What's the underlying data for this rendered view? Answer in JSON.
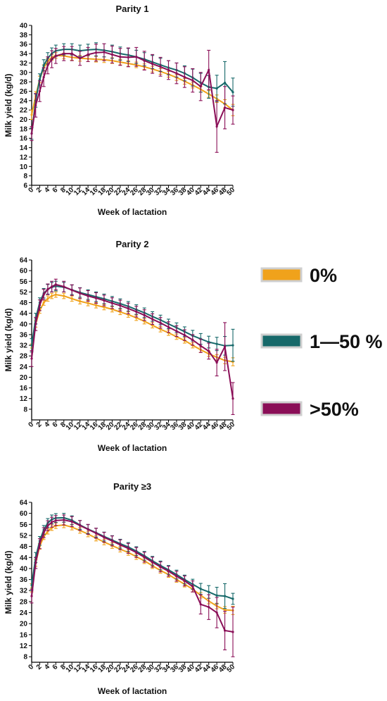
{
  "colors": {
    "zero": "#F0A21B",
    "low": "#17696A",
    "high": "#8A0E57"
  },
  "legend": [
    {
      "label": "0%",
      "color_key": "zero"
    },
    {
      "label": "1—50 %",
      "color_key": "low"
    },
    {
      "label": ">50%",
      "color_key": "high"
    }
  ],
  "chart_data": [
    {
      "type": "line",
      "title": "Parity 1",
      "xlabel": "Week of lactation",
      "ylabel": "Milk yield (kg/d)",
      "xlim": [
        0,
        50
      ],
      "ylim": [
        6,
        40
      ],
      "yticks": [
        6,
        8,
        10,
        12,
        14,
        16,
        18,
        20,
        22,
        24,
        26,
        28,
        30,
        32,
        34,
        36,
        38,
        40
      ],
      "xticks": [
        0,
        2,
        4,
        6,
        8,
        10,
        12,
        14,
        16,
        18,
        20,
        22,
        24,
        26,
        28,
        30,
        32,
        34,
        36,
        38,
        40,
        42,
        44,
        46,
        48,
        50
      ],
      "error_bars": "±",
      "series": [
        {
          "name": "0%",
          "color_key": "zero",
          "x": [
            0,
            1,
            2,
            3,
            4,
            5,
            6,
            8,
            10,
            12,
            14,
            16,
            18,
            20,
            22,
            24,
            26,
            28,
            30,
            32,
            34,
            36,
            38,
            40,
            42,
            44,
            46,
            48,
            50
          ],
          "y": [
            21,
            25,
            28.5,
            31,
            32.3,
            33.2,
            33.6,
            33.5,
            33.2,
            33.0,
            32.9,
            32.8,
            32.7,
            32.5,
            32.2,
            31.9,
            31.6,
            31.2,
            30.7,
            30.2,
            29.6,
            28.9,
            28.1,
            27.3,
            26.4,
            25.4,
            24.4,
            23.3,
            22.0
          ],
          "err": [
            1.0,
            0.9,
            0.7,
            0.6,
            0.6,
            0.6,
            0.6,
            0.6,
            0.6,
            0.6,
            0.6,
            0.6,
            0.6,
            0.6,
            0.6,
            0.6,
            0.6,
            0.6,
            0.6,
            0.6,
            0.6,
            0.6,
            0.6,
            0.6,
            0.6,
            0.7,
            0.8,
            0.9,
            1.2
          ]
        },
        {
          "name": "1—50 %",
          "color_key": "low",
          "x": [
            0,
            1,
            2,
            3,
            4,
            5,
            6,
            8,
            10,
            12,
            14,
            16,
            18,
            20,
            22,
            24,
            26,
            28,
            30,
            32,
            34,
            36,
            38,
            40,
            42,
            44,
            46,
            48,
            50
          ],
          "y": [
            17,
            24,
            28.5,
            31.5,
            33.0,
            34.0,
            34.6,
            34.9,
            34.9,
            34.6,
            34.8,
            34.9,
            34.7,
            34.4,
            34.0,
            33.7,
            33.3,
            32.8,
            32.2,
            31.6,
            31.0,
            30.5,
            29.8,
            28.9,
            27.8,
            26.9,
            26.6,
            27.8,
            25.8
          ],
          "err": [
            1.2,
            1.4,
            1.2,
            1.2,
            1.2,
            1.2,
            1.2,
            1.2,
            1.2,
            1.2,
            1.2,
            1.4,
            1.4,
            1.4,
            1.4,
            1.4,
            1.4,
            1.4,
            1.4,
            1.4,
            1.5,
            1.5,
            1.6,
            1.8,
            2.0,
            2.4,
            2.8,
            4.5,
            3.0
          ]
        },
        {
          "name": ">50%",
          "color_key": "high",
          "x": [
            0,
            1,
            2,
            3,
            4,
            5,
            6,
            8,
            10,
            12,
            14,
            16,
            18,
            20,
            22,
            24,
            26,
            28,
            30,
            32,
            34,
            36,
            38,
            40,
            42,
            44,
            46,
            48,
            50
          ],
          "y": [
            17,
            23,
            26.0,
            29.0,
            31.5,
            32.8,
            33.5,
            34.0,
            34.0,
            33.0,
            33.8,
            34.2,
            34.3,
            33.8,
            33.3,
            33.2,
            33.3,
            32.5,
            31.8,
            31.2,
            30.5,
            29.8,
            29.0,
            28.3,
            27.0,
            30.5,
            18.5,
            22.5,
            22.0
          ],
          "err": [
            1.5,
            2.5,
            2.2,
            2.0,
            1.8,
            1.8,
            1.6,
            1.5,
            1.5,
            1.5,
            1.5,
            1.8,
            1.8,
            1.8,
            1.8,
            2.0,
            2.0,
            2.0,
            2.0,
            2.0,
            2.0,
            2.2,
            2.2,
            2.5,
            3.0,
            4.2,
            5.5,
            4.5,
            3.0
          ]
        }
      ]
    },
    {
      "type": "line",
      "title": "Parity 2",
      "xlabel": "Week of lactation",
      "ylabel": "Milk yield (kg/d)",
      "xlim": [
        0,
        50
      ],
      "ylim": [
        4,
        64
      ],
      "yticks": [
        8,
        12,
        16,
        20,
        24,
        28,
        32,
        36,
        40,
        44,
        48,
        52,
        56,
        60,
        64
      ],
      "xticks": [
        0,
        2,
        4,
        6,
        8,
        10,
        12,
        14,
        16,
        18,
        20,
        22,
        24,
        26,
        28,
        30,
        32,
        34,
        36,
        38,
        40,
        42,
        44,
        46,
        48,
        50
      ],
      "error_bars": "±",
      "series": [
        {
          "name": "0%",
          "color_key": "zero",
          "x": [
            0,
            1,
            2,
            3,
            4,
            5,
            6,
            8,
            10,
            12,
            14,
            16,
            18,
            20,
            22,
            24,
            26,
            28,
            30,
            32,
            34,
            36,
            38,
            40,
            42,
            44,
            46,
            48,
            50
          ],
          "y": [
            31,
            40,
            45,
            48,
            49.5,
            50.5,
            51.0,
            50.5,
            49.5,
            48.5,
            47.8,
            47.0,
            46.3,
            45.5,
            44.5,
            43.5,
            42.3,
            41.0,
            39.5,
            38.0,
            36.7,
            35.2,
            33.8,
            32.0,
            30.3,
            28.8,
            27.5,
            26.3,
            25.8
          ],
          "err": [
            1.5,
            1.2,
            1.0,
            1.0,
            1.0,
            1.0,
            1.0,
            1.0,
            1.0,
            1.0,
            1.0,
            1.0,
            1.0,
            1.0,
            1.0,
            1.0,
            1.0,
            1.0,
            1.0,
            1.0,
            1.0,
            1.0,
            1.0,
            1.0,
            1.0,
            1.0,
            1.0,
            1.2,
            1.5
          ]
        },
        {
          "name": "1—50 %",
          "color_key": "low",
          "x": [
            0,
            1,
            2,
            3,
            4,
            5,
            6,
            8,
            10,
            12,
            14,
            16,
            18,
            20,
            22,
            24,
            26,
            28,
            30,
            32,
            34,
            36,
            38,
            40,
            42,
            44,
            46,
            48,
            50
          ],
          "y": [
            32,
            42,
            48,
            51.5,
            53,
            53.8,
            54.2,
            53.8,
            52.8,
            51.8,
            51.0,
            50.2,
            49.4,
            48.5,
            47.6,
            46.6,
            45.4,
            44.2,
            42.8,
            41.5,
            40.0,
            38.6,
            37.1,
            35.6,
            34.4,
            33.2,
            32.5,
            31.8,
            32.0
          ],
          "err": [
            2.5,
            2.0,
            1.8,
            1.8,
            1.8,
            1.8,
            1.8,
            1.8,
            1.8,
            1.8,
            1.8,
            1.8,
            1.8,
            1.8,
            1.8,
            1.8,
            1.8,
            1.8,
            1.8,
            1.8,
            1.8,
            1.8,
            1.8,
            2.0,
            2.0,
            2.2,
            2.5,
            3.5,
            6.0
          ]
        },
        {
          "name": ">50%",
          "color_key": "high",
          "x": [
            0,
            1,
            2,
            3,
            4,
            5,
            6,
            8,
            10,
            12,
            14,
            16,
            18,
            20,
            22,
            24,
            26,
            28,
            30,
            32,
            34,
            36,
            38,
            40,
            42,
            44,
            46,
            48,
            50
          ],
          "y": [
            27,
            40,
            47,
            51,
            53,
            54,
            54.8,
            54.0,
            52.7,
            51.5,
            50.5,
            49.7,
            48.8,
            47.8,
            46.9,
            45.8,
            44.6,
            43.3,
            41.8,
            40.4,
            38.8,
            37.3,
            35.8,
            34.0,
            31.8,
            29.8,
            25.5,
            31.5,
            12.0
          ],
          "err": [
            3.0,
            2.5,
            2.0,
            2.0,
            2.0,
            2.0,
            2.0,
            2.0,
            2.0,
            2.0,
            2.0,
            2.0,
            2.0,
            2.0,
            2.0,
            2.0,
            2.0,
            2.0,
            2.0,
            2.0,
            2.0,
            2.0,
            2.0,
            2.0,
            2.5,
            3.0,
            5.0,
            9.0,
            6.0
          ]
        }
      ]
    },
    {
      "type": "line",
      "title": "Parity ≥3",
      "xlabel": "Week of lactation",
      "ylabel": "Milk yield (kg/d)",
      "xlim": [
        0,
        50
      ],
      "ylim": [
        6,
        64
      ],
      "yticks": [
        8,
        12,
        16,
        20,
        24,
        28,
        32,
        36,
        40,
        44,
        48,
        52,
        56,
        60,
        64
      ],
      "xticks": [
        0,
        2,
        4,
        6,
        8,
        10,
        12,
        14,
        16,
        18,
        20,
        22,
        24,
        26,
        28,
        30,
        32,
        34,
        36,
        38,
        40,
        42,
        44,
        46,
        48,
        50
      ],
      "error_bars": "±",
      "series": [
        {
          "name": "0%",
          "color_key": "zero",
          "x": [
            0,
            1,
            2,
            3,
            4,
            5,
            6,
            8,
            10,
            12,
            14,
            16,
            18,
            20,
            22,
            24,
            26,
            28,
            30,
            32,
            34,
            36,
            38,
            40,
            42,
            44,
            46,
            48,
            50
          ],
          "y": [
            33,
            42,
            48,
            51.5,
            53.5,
            54.8,
            55.5,
            55.8,
            55.0,
            53.8,
            52.5,
            51.0,
            49.6,
            48.3,
            47.0,
            45.8,
            44.3,
            42.8,
            41.0,
            39.3,
            37.8,
            36.0,
            34.3,
            32.5,
            30.3,
            28.2,
            26.4,
            25.0,
            24.8
          ],
          "err": [
            1.5,
            1.2,
            1.0,
            1.0,
            1.0,
            1.0,
            1.0,
            1.0,
            1.0,
            1.0,
            1.0,
            1.0,
            1.0,
            1.0,
            1.0,
            1.0,
            1.0,
            1.0,
            1.0,
            1.0,
            1.0,
            1.0,
            1.0,
            1.0,
            1.0,
            1.0,
            1.0,
            1.2,
            1.5
          ]
        },
        {
          "name": "1—50 %",
          "color_key": "low",
          "x": [
            0,
            1,
            2,
            3,
            4,
            5,
            6,
            8,
            10,
            12,
            14,
            16,
            18,
            20,
            22,
            24,
            26,
            28,
            30,
            32,
            34,
            36,
            38,
            40,
            42,
            44,
            46,
            48,
            50
          ],
          "y": [
            34,
            44,
            50,
            54,
            56.5,
            57.8,
            58.3,
            58.4,
            57.5,
            55.8,
            54.3,
            53.0,
            51.6,
            50.3,
            49.0,
            47.8,
            46.3,
            44.6,
            42.8,
            41.1,
            39.5,
            37.8,
            36.0,
            34.3,
            32.6,
            31.5,
            30.2,
            30.0,
            29.0
          ],
          "err": [
            2.0,
            1.8,
            1.6,
            1.6,
            1.6,
            1.6,
            1.6,
            1.6,
            1.6,
            1.6,
            1.6,
            1.6,
            1.6,
            1.6,
            1.6,
            1.6,
            1.6,
            1.6,
            1.6,
            1.6,
            1.6,
            1.6,
            1.6,
            1.8,
            2.0,
            2.3,
            3.0,
            4.5,
            2.0
          ]
        },
        {
          "name": ">50%",
          "color_key": "high",
          "x": [
            0,
            1,
            2,
            3,
            4,
            5,
            6,
            8,
            10,
            12,
            14,
            16,
            18,
            20,
            22,
            24,
            26,
            28,
            30,
            32,
            34,
            36,
            38,
            40,
            42,
            44,
            46,
            48,
            50
          ],
          "y": [
            30,
            42,
            49,
            53,
            55.5,
            56.8,
            57.4,
            57.6,
            57.0,
            55.6,
            54.2,
            52.8,
            51.3,
            50.0,
            48.6,
            47.3,
            45.8,
            44.1,
            42.3,
            40.6,
            39.0,
            37.2,
            35.5,
            33.5,
            27.0,
            26.0,
            24.0,
            17.5,
            17.0
          ],
          "err": [
            2.5,
            2.0,
            1.8,
            1.8,
            1.8,
            1.8,
            1.8,
            1.8,
            1.8,
            1.8,
            1.8,
            1.8,
            1.8,
            1.8,
            1.8,
            1.8,
            1.8,
            1.8,
            1.8,
            1.8,
            1.8,
            1.8,
            1.8,
            2.0,
            3.5,
            4.5,
            5.5,
            7.0,
            9.0
          ]
        }
      ]
    }
  ]
}
